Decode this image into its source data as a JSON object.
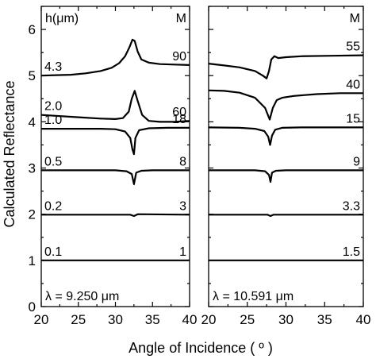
{
  "chart_data": {
    "type": "line",
    "ylabel": "Calculated Reflectance",
    "xlabel": "Angle of Incidence ( º )",
    "ylim": [
      0,
      6.5
    ],
    "y_ticks": [
      "0",
      "1",
      "2",
      "3",
      "4",
      "5",
      "6"
    ],
    "x_ticks": [
      "20",
      "25",
      "30",
      "35",
      "40"
    ],
    "grid": false,
    "panels": [
      {
        "xlim": [
          20,
          40
        ],
        "x_ticks": [
          "20",
          "25",
          "30",
          "35",
          "40"
        ],
        "wavelength_label": "λ = 9.250 μm",
        "h_header": "h(μm)",
        "m_header": "M",
        "series": [
          {
            "h": "0.1",
            "M": "1",
            "x": [
              20,
              40
            ],
            "y": [
              1.0,
              1.0
            ]
          },
          {
            "h": "0.2",
            "M": "3",
            "x": [
              20,
              32.0,
              32.5,
              33.0,
              40
            ],
            "y": [
              1.99,
              1.99,
              1.96,
              2.0,
              1.99
            ]
          },
          {
            "h": "0.5",
            "M": "8",
            "x": [
              20,
              30,
              31.5,
              32.2,
              32.5,
              32.8,
              33.5,
              35,
              40
            ],
            "y": [
              2.95,
              2.95,
              2.93,
              2.87,
              2.65,
              2.9,
              2.94,
              2.95,
              2.95
            ]
          },
          {
            "h": "1.0",
            "M": "18",
            "x": [
              20,
              28,
              30,
              31.3,
              32.0,
              32.3,
              32.5,
              32.7,
              33.2,
              34.5,
              37,
              40
            ],
            "y": [
              3.85,
              3.85,
              3.84,
              3.79,
              3.65,
              3.4,
              3.3,
              3.65,
              3.82,
              3.86,
              3.87,
              3.87
            ]
          },
          {
            "h": "2.0",
            "M": "60",
            "x": [
              20,
              25,
              28,
              30,
              31,
              31.8,
              32.2,
              32.6,
              33.0,
              33.6,
              34.5,
              36,
              38,
              40
            ],
            "y": [
              4.15,
              4.1,
              4.07,
              4.06,
              4.08,
              4.22,
              4.5,
              4.67,
              4.45,
              4.15,
              4.02,
              4.0,
              4.0,
              4.02
            ]
          },
          {
            "h": "4.3",
            "M": "90",
            "x": [
              20,
              22,
              24,
              26,
              28,
              29.5,
              30.5,
              31.3,
              31.9,
              32.3,
              32.6,
              33.0,
              33.5,
              34.5,
              36,
              38,
              40
            ],
            "y": [
              5.0,
              5.01,
              5.02,
              5.05,
              5.1,
              5.17,
              5.27,
              5.42,
              5.62,
              5.78,
              5.75,
              5.52,
              5.35,
              5.28,
              5.25,
              5.24,
              5.23
            ]
          }
        ]
      },
      {
        "xlim": [
          20,
          40
        ],
        "x_ticks": [
          "20",
          "25",
          "30",
          "35",
          "40"
        ],
        "wavelength_label": "λ = 10.591 μm",
        "h_header": "",
        "m_header": "M",
        "series": [
          {
            "M": "1.5",
            "x": [
              20,
              40
            ],
            "y": [
              1.0,
              1.0
            ]
          },
          {
            "M": "3.3",
            "x": [
              20,
              27.6,
              28.0,
              28.4,
              40
            ],
            "y": [
              1.99,
              1.99,
              1.96,
              1.99,
              1.99
            ]
          },
          {
            "M": "9",
            "x": [
              20,
              26,
              27.3,
              27.8,
              28.0,
              28.2,
              28.7,
              30,
              40
            ],
            "y": [
              2.95,
              2.95,
              2.93,
              2.85,
              2.7,
              2.9,
              2.94,
              2.95,
              2.95
            ]
          },
          {
            "M": "15",
            "x": [
              20,
              24,
              26,
              27.2,
              27.7,
              27.95,
              28.2,
              28.6,
              29.5,
              32,
              40
            ],
            "y": [
              3.88,
              3.87,
              3.85,
              3.8,
              3.68,
              3.5,
              3.7,
              3.83,
              3.87,
              3.88,
              3.88
            ]
          },
          {
            "M": "40",
            "x": [
              20,
              22,
              24,
              26,
              27.3,
              27.9,
              28.3,
              28.8,
              29.5,
              31,
              34,
              37,
              40
            ],
            "y": [
              4.68,
              4.67,
              4.63,
              4.52,
              4.3,
              4.05,
              4.3,
              4.47,
              4.52,
              4.56,
              4.6,
              4.62,
              4.62
            ]
          },
          {
            "M": "55",
            "x": [
              20,
              22,
              24,
              26,
              27.0,
              27.5,
              27.8,
              28.1,
              28.5,
              29.0,
              30.0,
              32,
              36,
              40
            ],
            "y": [
              5.26,
              5.22,
              5.18,
              5.1,
              5.0,
              4.94,
              5.1,
              5.35,
              5.42,
              5.38,
              5.4,
              5.42,
              5.43,
              5.44
            ]
          }
        ]
      }
    ]
  }
}
